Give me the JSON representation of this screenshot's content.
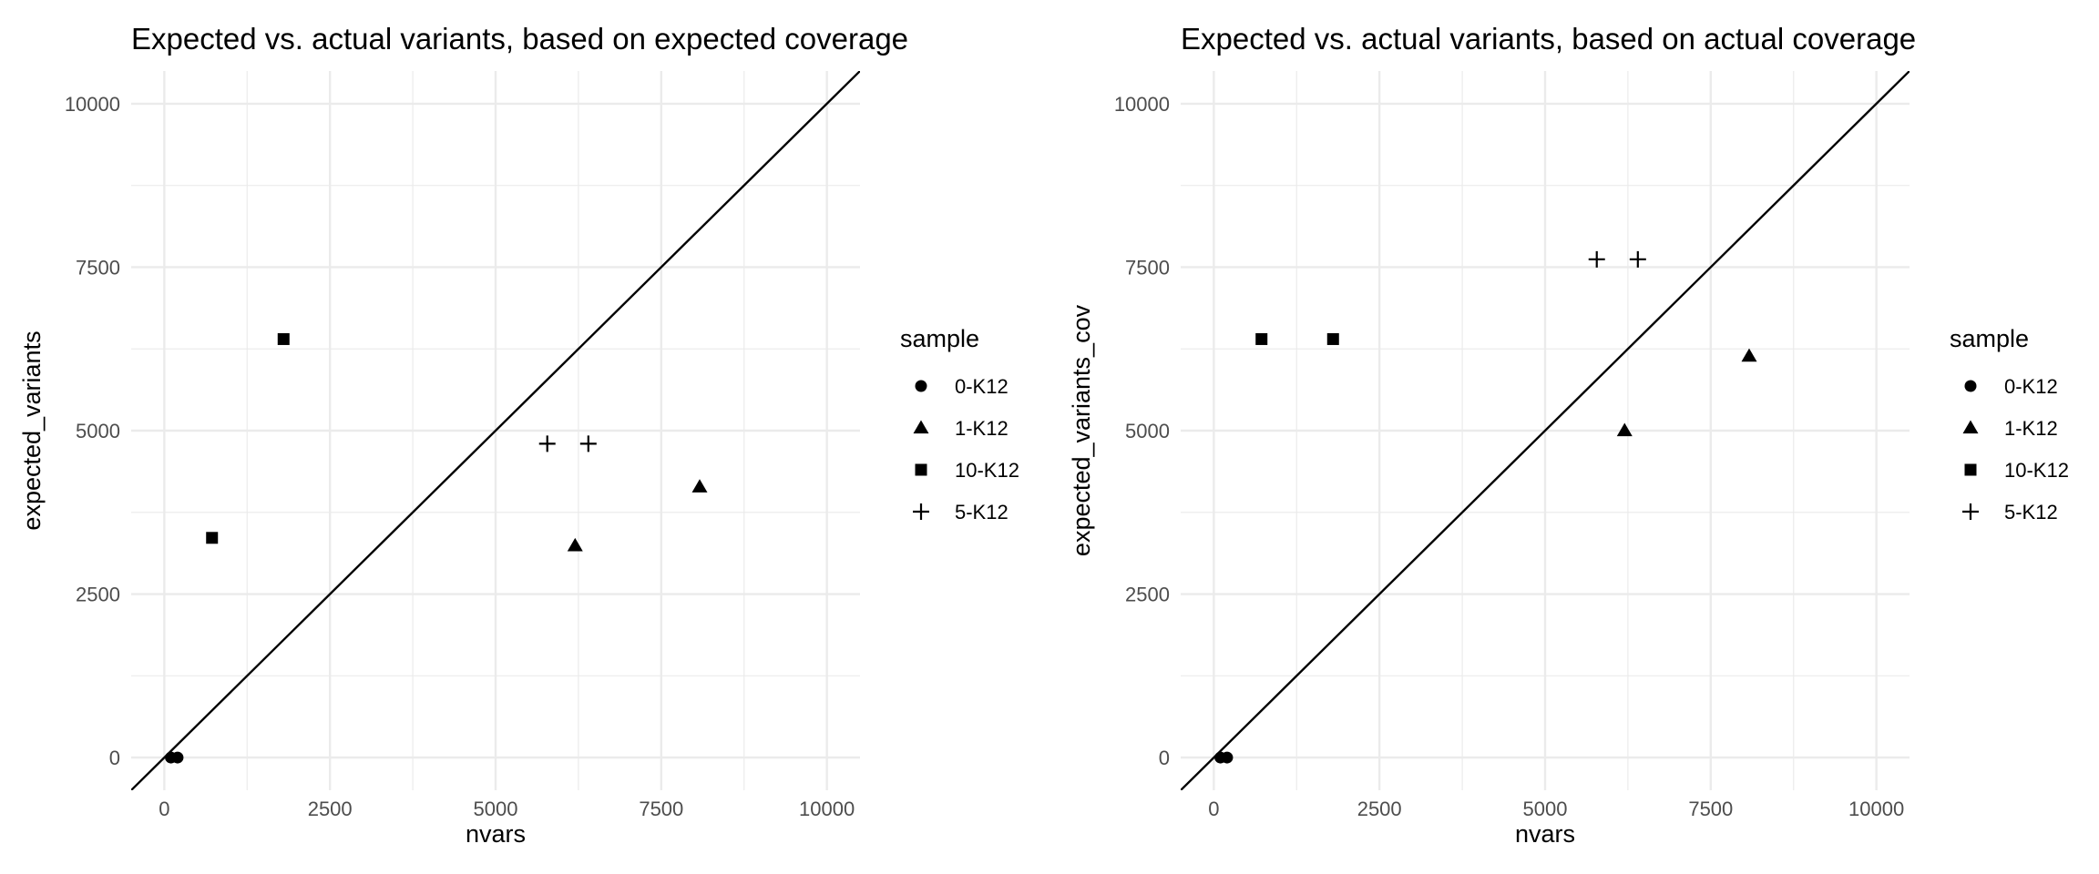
{
  "chart_data": [
    {
      "type": "scatter",
      "title": "Expected vs. actual variants, based on expected coverage",
      "xlabel": "nvars",
      "ylabel": "expected_variants",
      "xlim": [
        -500,
        10500
      ],
      "ylim": [
        -500,
        10500
      ],
      "x_ticks": [
        0,
        2500,
        5000,
        7500,
        10000
      ],
      "y_ticks": [
        0,
        2500,
        5000,
        7500,
        10000
      ],
      "grid": true,
      "reference_line": {
        "slope": 1,
        "intercept": 0
      },
      "legend": {
        "title": "sample",
        "position": "right"
      },
      "series": [
        {
          "name": "0-K12",
          "shape": "circle",
          "points": [
            [
              100,
              0
            ],
            [
              200,
              0
            ]
          ]
        },
        {
          "name": "1-K12",
          "shape": "triangle",
          "points": [
            [
              6200,
              3240
            ],
            [
              8080,
              4140
            ]
          ]
        },
        {
          "name": "10-K12",
          "shape": "square",
          "points": [
            [
              720,
              3360
            ],
            [
              1800,
              6400
            ]
          ]
        },
        {
          "name": "5-K12",
          "shape": "plus",
          "points": [
            [
              5780,
              4800
            ],
            [
              6400,
              4800
            ]
          ]
        }
      ]
    },
    {
      "type": "scatter",
      "title": "Expected vs. actual variants, based on actual coverage",
      "xlabel": "nvars",
      "ylabel": "expected_variants_cov",
      "xlim": [
        -500,
        10500
      ],
      "ylim": [
        -500,
        10500
      ],
      "x_ticks": [
        0,
        2500,
        5000,
        7500,
        10000
      ],
      "y_ticks": [
        0,
        2500,
        5000,
        7500,
        10000
      ],
      "grid": true,
      "reference_line": {
        "slope": 1,
        "intercept": 0
      },
      "legend": {
        "title": "sample",
        "position": "right"
      },
      "series": [
        {
          "name": "0-K12",
          "shape": "circle",
          "points": [
            [
              100,
              0
            ],
            [
              200,
              0
            ]
          ]
        },
        {
          "name": "1-K12",
          "shape": "triangle",
          "points": [
            [
              6200,
              5000
            ],
            [
              8080,
              6140
            ]
          ]
        },
        {
          "name": "10-K12",
          "shape": "square",
          "points": [
            [
              720,
              6400
            ],
            [
              1800,
              6400
            ]
          ]
        },
        {
          "name": "5-K12",
          "shape": "plus",
          "points": [
            [
              5780,
              7620
            ],
            [
              6400,
              7620
            ]
          ]
        }
      ]
    }
  ]
}
